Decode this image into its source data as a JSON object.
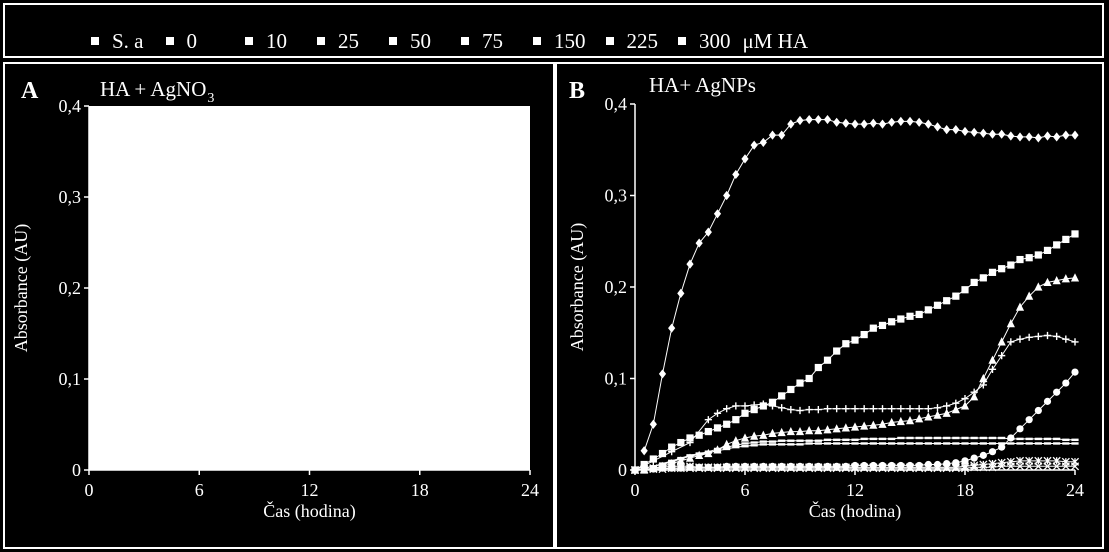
{
  "legend": {
    "items": [
      "S. a",
      "0",
      "10",
      "25",
      "50",
      "75",
      "150",
      "225",
      "300"
    ],
    "unit": "μM HA"
  },
  "chart_data": [
    {
      "type": "line",
      "panel_label": "A",
      "title": "HA + AgNO",
      "title_sub": "3",
      "xlabel": "Čas (hodina)",
      "ylabel": "Absorbance (AU)",
      "xlim": [
        0,
        24
      ],
      "ylim": [
        0,
        0.4
      ],
      "xticks": [
        "0",
        "6",
        "12",
        "18",
        "24"
      ],
      "yticks": [
        "0",
        "0,1",
        "0,2",
        "0,3",
        "0,4"
      ],
      "series": [],
      "background": "#ffffff"
    },
    {
      "type": "line",
      "panel_label": "B",
      "title": "HA+ AgNPs",
      "xlabel": "Čas (hodina)",
      "ylabel": "Absorbance (AU)",
      "xlim": [
        0,
        24
      ],
      "ylim": [
        0,
        0.4
      ],
      "xticks": [
        "0",
        "6",
        "12",
        "18",
        "24"
      ],
      "yticks": [
        "0",
        "0,1",
        "0,2",
        "0,3",
        "0,4"
      ],
      "series": [
        {
          "marker": "diamond",
          "x": [
            0.5,
            1,
            1.5,
            2,
            2.5,
            3,
            3.5,
            4,
            4.5,
            5,
            5.5,
            6,
            6.5,
            7,
            7.5,
            8,
            8.5,
            9,
            9.5,
            10,
            10.5,
            11,
            11.5,
            12,
            12.5,
            13,
            13.5,
            14,
            14.5,
            15,
            15.5,
            16,
            16.5,
            17,
            17.5,
            18,
            18.5,
            19,
            19.5,
            20,
            20.5,
            21,
            21.5,
            22,
            22.5,
            23,
            23.5,
            24
          ],
          "y": [
            0.021,
            0.05,
            0.105,
            0.155,
            0.193,
            0.225,
            0.248,
            0.26,
            0.28,
            0.3,
            0.323,
            0.34,
            0.355,
            0.358,
            0.366,
            0.366,
            0.378,
            0.382,
            0.383,
            0.383,
            0.383,
            0.38,
            0.379,
            0.378,
            0.378,
            0.379,
            0.378,
            0.38,
            0.381,
            0.381,
            0.38,
            0.378,
            0.375,
            0.372,
            0.372,
            0.37,
            0.369,
            0.368,
            0.367,
            0.367,
            0.365,
            0.364,
            0.364,
            0.363,
            0.365,
            0.364,
            0.366,
            0.366
          ]
        },
        {
          "marker": "square",
          "x": [
            0,
            0.5,
            1,
            1.5,
            2,
            2.5,
            3,
            3.5,
            4,
            4.5,
            5,
            5.5,
            6,
            6.5,
            7,
            7.5,
            8,
            8.5,
            9,
            9.5,
            10,
            10.5,
            11,
            11.5,
            12,
            12.5,
            13,
            13.5,
            14,
            14.5,
            15,
            15.5,
            16,
            16.5,
            17,
            17.5,
            18,
            18.5,
            19,
            19.5,
            20,
            20.5,
            21,
            21.5,
            22,
            22.5,
            23,
            23.5,
            24
          ],
          "y": [
            0,
            0.006,
            0.012,
            0.018,
            0.025,
            0.03,
            0.035,
            0.038,
            0.042,
            0.046,
            0.05,
            0.055,
            0.062,
            0.066,
            0.07,
            0.074,
            0.081,
            0.088,
            0.095,
            0.1,
            0.112,
            0.12,
            0.13,
            0.138,
            0.142,
            0.148,
            0.155,
            0.158,
            0.162,
            0.165,
            0.168,
            0.17,
            0.175,
            0.18,
            0.185,
            0.19,
            0.197,
            0.205,
            0.21,
            0.216,
            0.22,
            0.224,
            0.23,
            0.232,
            0.235,
            0.24,
            0.246,
            0.252,
            0.258
          ]
        },
        {
          "marker": "plus",
          "x": [
            0,
            1,
            2,
            3,
            4,
            4.5,
            5,
            5.5,
            6,
            6.5,
            7,
            7.5,
            8,
            8.5,
            9,
            9.5,
            10,
            10.5,
            11,
            11.5,
            12,
            12.5,
            13,
            13.5,
            14,
            14.5,
            15,
            15.5,
            16,
            16.5,
            17,
            17.5,
            18,
            18.5,
            19,
            19.5,
            20,
            20.5,
            21,
            21.5,
            22,
            22.5,
            23,
            23.5,
            24
          ],
          "y": [
            0,
            0.01,
            0.02,
            0.03,
            0.055,
            0.062,
            0.067,
            0.07,
            0.07,
            0.071,
            0.072,
            0.07,
            0.068,
            0.066,
            0.065,
            0.066,
            0.066,
            0.067,
            0.067,
            0.067,
            0.067,
            0.067,
            0.067,
            0.067,
            0.067,
            0.067,
            0.067,
            0.067,
            0.067,
            0.068,
            0.07,
            0.073,
            0.078,
            0.085,
            0.093,
            0.11,
            0.125,
            0.14,
            0.143,
            0.145,
            0.146,
            0.147,
            0.146,
            0.143,
            0.14
          ]
        },
        {
          "marker": "triangle",
          "x": [
            0,
            0.5,
            1,
            1.5,
            2,
            2.5,
            3,
            3.5,
            4,
            4.5,
            5,
            5.5,
            6,
            6.5,
            7,
            7.5,
            8,
            8.5,
            9,
            9.5,
            10,
            10.5,
            11,
            11.5,
            12,
            12.5,
            13,
            13.5,
            14,
            14.5,
            15,
            15.5,
            16,
            16.5,
            17,
            17.5,
            18,
            18.5,
            19,
            19.5,
            20,
            20.5,
            21,
            21.5,
            22,
            22.5,
            23,
            23.5,
            24
          ],
          "y": [
            0,
            0,
            0.002,
            0.004,
            0.007,
            0.01,
            0.013,
            0.016,
            0.018,
            0.022,
            0.028,
            0.032,
            0.035,
            0.037,
            0.038,
            0.04,
            0.041,
            0.042,
            0.042,
            0.043,
            0.043,
            0.044,
            0.045,
            0.046,
            0.047,
            0.048,
            0.049,
            0.05,
            0.052,
            0.053,
            0.054,
            0.056,
            0.058,
            0.06,
            0.062,
            0.066,
            0.07,
            0.08,
            0.1,
            0.12,
            0.14,
            0.16,
            0.178,
            0.19,
            0.2,
            0.205,
            0.207,
            0.209,
            0.21
          ]
        },
        {
          "marker": "circle",
          "x": [
            0,
            0.5,
            1,
            1.5,
            2,
            2.5,
            3,
            3.5,
            4,
            4.5,
            5,
            5.5,
            6,
            6.5,
            7,
            7.5,
            8,
            8.5,
            9,
            9.5,
            10,
            10.5,
            11,
            11.5,
            12,
            12.5,
            13,
            13.5,
            14,
            14.5,
            15,
            15.5,
            16,
            16.5,
            17,
            17.5,
            18,
            18.5,
            19,
            19.5,
            20,
            20.5,
            21,
            21.5,
            22,
            22.5,
            23,
            23.5,
            24
          ],
          "y": [
            0,
            0.001,
            0.001,
            0.002,
            0.002,
            0.002,
            0.003,
            0.003,
            0.003,
            0.003,
            0.004,
            0.004,
            0.004,
            0.004,
            0.004,
            0.004,
            0.004,
            0.004,
            0.004,
            0.004,
            0.004,
            0.004,
            0.004,
            0.004,
            0.005,
            0.005,
            0.005,
            0.005,
            0.005,
            0.005,
            0.005,
            0.005,
            0.006,
            0.006,
            0.007,
            0.008,
            0.01,
            0.013,
            0.016,
            0.02,
            0.025,
            0.035,
            0.045,
            0.055,
            0.065,
            0.075,
            0.085,
            0.095,
            0.107
          ]
        },
        {
          "marker": "dash",
          "x": [
            0,
            0.5,
            1,
            1.5,
            2,
            2.5,
            3,
            3.5,
            4,
            4.5,
            5,
            5.5,
            6,
            6.5,
            7,
            7.5,
            8,
            8.5,
            9,
            9.5,
            10,
            10.5,
            11,
            11.5,
            12,
            12.5,
            13,
            13.5,
            14,
            14.5,
            15,
            15.5,
            16,
            16.5,
            17,
            17.5,
            18,
            18.5,
            19,
            19.5,
            20,
            20.5,
            21,
            21.5,
            22,
            22.5,
            23,
            23.5,
            24
          ],
          "y": [
            0,
            0.002,
            0.004,
            0.007,
            0.01,
            0.013,
            0.016,
            0.018,
            0.02,
            0.023,
            0.025,
            0.027,
            0.029,
            0.03,
            0.031,
            0.031,
            0.032,
            0.032,
            0.032,
            0.032,
            0.032,
            0.033,
            0.033,
            0.033,
            0.033,
            0.034,
            0.034,
            0.034,
            0.034,
            0.035,
            0.035,
            0.035,
            0.035,
            0.035,
            0.035,
            0.035,
            0.035,
            0.035,
            0.035,
            0.035,
            0.035,
            0.034,
            0.034,
            0.034,
            0.034,
            0.034,
            0.034,
            0.033,
            0.033
          ]
        },
        {
          "marker": "dash",
          "x": [
            0,
            0.5,
            1,
            1.5,
            2,
            2.5,
            3,
            3.5,
            4,
            4.5,
            5,
            5.5,
            6,
            6.5,
            7,
            7.5,
            8,
            8.5,
            9,
            9.5,
            10,
            10.5,
            11,
            11.5,
            12,
            12.5,
            13,
            13.5,
            14,
            14.5,
            15,
            15.5,
            16,
            16.5,
            17,
            17.5,
            18,
            18.5,
            19,
            19.5,
            20,
            20.5,
            21,
            21.5,
            22,
            22.5,
            23,
            23.5,
            24
          ],
          "y": [
            0,
            0.002,
            0.004,
            0.006,
            0.009,
            0.012,
            0.015,
            0.017,
            0.019,
            0.021,
            0.023,
            0.025,
            0.026,
            0.027,
            0.028,
            0.028,
            0.028,
            0.028,
            0.028,
            0.029,
            0.029,
            0.029,
            0.029,
            0.029,
            0.029,
            0.029,
            0.029,
            0.029,
            0.029,
            0.029,
            0.029,
            0.029,
            0.029,
            0.029,
            0.029,
            0.029,
            0.029,
            0.029,
            0.029,
            0.029,
            0.029,
            0.029,
            0.029,
            0.029,
            0.029,
            0.029,
            0.029,
            0.029,
            0.029
          ]
        },
        {
          "marker": "cross",
          "x": [
            0,
            0.5,
            1,
            1.5,
            2,
            2.5,
            3,
            3.5,
            4,
            4.5,
            5,
            5.5,
            6,
            6.5,
            7,
            7.5,
            8,
            8.5,
            9,
            9.5,
            10,
            10.5,
            11,
            11.5,
            12,
            12.5,
            13,
            13.5,
            14,
            14.5,
            15,
            15.5,
            16,
            16.5,
            17,
            17.5,
            18,
            18.5,
            19,
            19.5,
            20,
            20.5,
            21,
            21.5,
            22,
            22.5,
            23,
            23.5,
            24
          ],
          "y": [
            0,
            0.001,
            0.002,
            0.003,
            0.004,
            0.004,
            0.004,
            0.003,
            0.003,
            0.003,
            0.003,
            0.003,
            0.003,
            0.003,
            0.003,
            0.003,
            0.003,
            0.003,
            0.003,
            0.003,
            0.003,
            0.003,
            0.003,
            0.003,
            0.003,
            0.003,
            0.003,
            0.003,
            0.003,
            0.003,
            0.003,
            0.003,
            0.003,
            0.003,
            0.003,
            0.003,
            0.004,
            0.005,
            0.006,
            0.007,
            0.008,
            0.009,
            0.01,
            0.01,
            0.01,
            0.01,
            0.01,
            0.009,
            0.009
          ]
        },
        {
          "marker": "x",
          "x": [
            0,
            0.5,
            1,
            1.5,
            2,
            2.5,
            3,
            3.5,
            4,
            4.5,
            5,
            5.5,
            6,
            6.5,
            7,
            7.5,
            8,
            8.5,
            9,
            9.5,
            10,
            10.5,
            11,
            11.5,
            12,
            12.5,
            13,
            13.5,
            14,
            14.5,
            15,
            15.5,
            16,
            16.5,
            17,
            17.5,
            18,
            18.5,
            19,
            19.5,
            20,
            20.5,
            21,
            21.5,
            22,
            22.5,
            23,
            23.5,
            24
          ],
          "y": [
            0,
            0.001,
            0.001,
            0.001,
            0.002,
            0.002,
            0.002,
            0.002,
            0.002,
            0.002,
            0.002,
            0.002,
            0.002,
            0.002,
            0.002,
            0.002,
            0.002,
            0.002,
            0.002,
            0.002,
            0.002,
            0.002,
            0.002,
            0.002,
            0.002,
            0.002,
            0.002,
            0.002,
            0.002,
            0.002,
            0.002,
            0.002,
            0.002,
            0.002,
            0.002,
            0.002,
            0.002,
            0.003,
            0.003,
            0.003,
            0.004,
            0.004,
            0.004,
            0.004,
            0.004,
            0.004,
            0.004,
            0.004,
            0.004
          ]
        }
      ]
    }
  ]
}
